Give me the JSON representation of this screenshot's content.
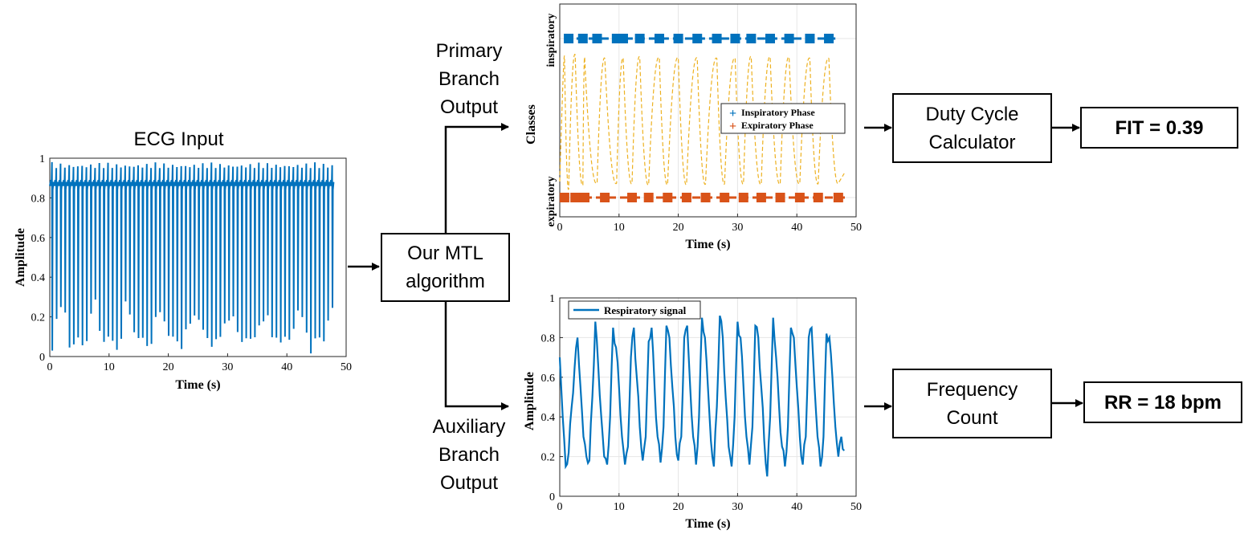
{
  "ecg": {
    "title": "ECG Input",
    "xlabel": "Time (s)",
    "ylabel": "Amplitude",
    "xticks": [
      "0",
      "10",
      "20",
      "30",
      "40",
      "50"
    ],
    "yticks": [
      "0",
      "0.2",
      "0.4",
      "0.6",
      "0.8",
      "1"
    ],
    "color": "#0072BD"
  },
  "mtl": {
    "label": "Our MTL\nalgorithm"
  },
  "primary": {
    "label": "Primary\nBranch\nOutput"
  },
  "auxiliary": {
    "label": "Auxiliary\nBranch\nOutput"
  },
  "phase_plot": {
    "xlabel": "Time (s)",
    "ylabel": "Classes",
    "yticks": [
      "expiratory",
      "inspiratory"
    ],
    "xticks": [
      "0",
      "10",
      "20",
      "30",
      "40",
      "50"
    ],
    "legend": [
      "Inspiratory Phase",
      "Expiratory Phase"
    ]
  },
  "resp_plot": {
    "xlabel": "Time (s)",
    "ylabel": "Amplitude",
    "xticks": [
      "0",
      "10",
      "20",
      "30",
      "40",
      "50"
    ],
    "yticks": [
      "0",
      "0.2",
      "0.4",
      "0.6",
      "0.8",
      "1"
    ],
    "legend": "Respiratory signal"
  },
  "duty": {
    "label": "Duty Cycle\nCalculator"
  },
  "freq": {
    "label": "Frequency\nCount"
  },
  "fit": {
    "label": "FIT = 0.39"
  },
  "rr": {
    "label": "RR = 18 bpm"
  },
  "colors": {
    "blue": "#0072BD",
    "orange": "#D95319",
    "yellow": "#EDB120"
  },
  "chart_data": [
    {
      "type": "line",
      "title": "ECG Input",
      "xlabel": "Time (s)",
      "ylabel": "Amplitude",
      "xlim": [
        0,
        50
      ],
      "ylim": [
        0,
        1
      ],
      "series": [
        {
          "x": [
            0,
            48
          ],
          "y_baseline": 0.86,
          "y_peak_max": 0.98,
          "y_trough_min": 0.0
        }
      ]
    },
    {
      "type": "scatter",
      "xlabel": "Time (s)",
      "ylabel": "Classes",
      "xlim": [
        0,
        50
      ],
      "categories": [
        "expiratory",
        "inspiratory"
      ],
      "series": [
        {
          "name": "Inspiratory Phase",
          "x": [
            1.5,
            3.9,
            6.3,
            9.6,
            10.7,
            13.5,
            16.8,
            20,
            23.2,
            26.5,
            29.6,
            32.3,
            35.5,
            38.7,
            42.2,
            45.4
          ]
        },
        {
          "name": "Expiratory Phase",
          "x": [
            0.8,
            2.6,
            4.2,
            7.6,
            12.2,
            15,
            18.2,
            21.4,
            24.6,
            27.8,
            31,
            34,
            37.2,
            40.5,
            43.6,
            47
          ]
        }
      ]
    },
    {
      "type": "line",
      "xlabel": "Time (s)",
      "ylabel": "Amplitude",
      "xlim": [
        0,
        50
      ],
      "ylim": [
        0,
        1
      ],
      "series": [
        {
          "name": "Respiratory signal",
          "x": [
            0,
            0.5,
            1,
            1.5,
            2,
            2.5,
            3,
            3.5,
            4,
            4.5,
            5,
            5.5,
            6,
            6.5,
            7,
            7.5,
            8,
            8.5,
            9,
            9.5,
            10,
            10.5,
            11,
            11.5,
            12,
            12.5,
            13,
            13.5,
            14,
            14.5,
            15,
            15.5,
            16,
            16.5,
            17,
            17.5,
            18,
            18.5,
            19,
            19.5,
            20,
            20.5,
            21,
            21.5,
            22,
            22.5,
            23,
            23.5,
            24,
            24.5,
            25,
            25.5,
            26,
            26.5,
            27,
            27.5,
            28,
            28.5,
            29,
            29.5,
            30,
            30.5,
            31,
            31.5,
            32,
            32.5,
            33,
            33.5,
            34,
            34.5,
            35,
            35.5,
            36,
            36.5,
            37,
            37.5,
            38,
            38.5,
            39,
            39.5,
            40,
            40.5,
            41,
            41.5,
            42,
            42.5,
            43,
            43.5,
            44,
            44.5,
            45,
            45.5,
            46,
            46.5,
            47,
            47.5,
            48
          ],
          "y": [
            0.7,
            0.4,
            0.15,
            0.22,
            0.45,
            0.65,
            0.8,
            0.55,
            0.3,
            0.2,
            0.18,
            0.5,
            0.88,
            0.65,
            0.4,
            0.2,
            0.16,
            0.4,
            0.85,
            0.75,
            0.55,
            0.3,
            0.16,
            0.25,
            0.7,
            0.85,
            0.6,
            0.35,
            0.18,
            0.3,
            0.78,
            0.85,
            0.55,
            0.3,
            0.17,
            0.35,
            0.86,
            0.8,
            0.55,
            0.3,
            0.18,
            0.3,
            0.8,
            0.86,
            0.55,
            0.3,
            0.16,
            0.4,
            0.9,
            0.8,
            0.55,
            0.28,
            0.15,
            0.45,
            0.91,
            0.8,
            0.5,
            0.25,
            0.15,
            0.4,
            0.88,
            0.8,
            0.55,
            0.3,
            0.16,
            0.35,
            0.86,
            0.8,
            0.55,
            0.28,
            0.1,
            0.4,
            0.9,
            0.7,
            0.45,
            0.25,
            0.15,
            0.35,
            0.85,
            0.8,
            0.55,
            0.3,
            0.16,
            0.3,
            0.8,
            0.85,
            0.55,
            0.3,
            0.15,
            0.3,
            0.82,
            0.8,
            0.6,
            0.35,
            0.2,
            0.3,
            0.23
          ]
        }
      ]
    }
  ]
}
